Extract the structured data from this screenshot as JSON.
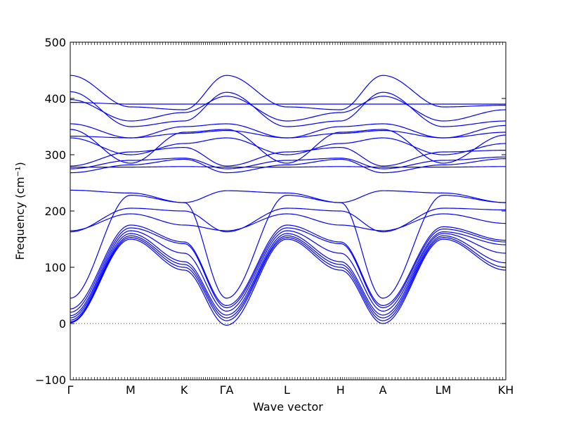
{
  "chart_data": {
    "type": "line",
    "xlabel": "Wave vector",
    "ylabel": "Frequency (cm⁻¹)",
    "ylim": [
      -100,
      500
    ],
    "yticks": [
      -100,
      0,
      100,
      200,
      300,
      400,
      500
    ],
    "yticks_labels": [
      "−100",
      "0",
      "100",
      "200",
      "300",
      "400",
      "500"
    ],
    "xlim": [
      0,
      7.8
    ],
    "kpoints": [
      {
        "label": "Γ",
        "x": 0.0
      },
      {
        "label": "M",
        "x": 1.08
      },
      {
        "label": "K",
        "x": 2.04
      },
      {
        "label": "ΓA",
        "x": 2.8
      },
      {
        "label": "L",
        "x": 3.88
      },
      {
        "label": "H",
        "x": 4.84
      },
      {
        "label": "A",
        "x": 5.6
      },
      {
        "label": "LM",
        "x": 6.68
      },
      {
        "label": "KH",
        "x": 7.8
      }
    ],
    "zero_line": {
      "y": 0,
      "style": "dotted"
    },
    "series_color": "#0000ff",
    "segment_starts": [
      0.0,
      1.08,
      2.04,
      2.8,
      3.88,
      4.84,
      5.6,
      6.68
    ],
    "bands": [
      [
        [
          0,
          1.5
        ],
        [
          1.08,
          150
        ],
        [
          2.04,
          95
        ],
        [
          2.8,
          -3
        ],
        [
          3.88,
          150
        ],
        [
          4.84,
          95
        ],
        [
          5.6,
          0
        ],
        [
          6.68,
          150
        ],
        [
          7.8,
          95
        ]
      ],
      [
        [
          0,
          3
        ],
        [
          1.08,
          153
        ],
        [
          2.04,
          100
        ],
        [
          2.8,
          5
        ],
        [
          3.88,
          153
        ],
        [
          4.84,
          100
        ],
        [
          5.6,
          5
        ],
        [
          6.68,
          153
        ],
        [
          7.8,
          100
        ]
      ],
      [
        [
          0,
          6
        ],
        [
          1.08,
          156
        ],
        [
          2.04,
          105
        ],
        [
          2.8,
          10
        ],
        [
          3.88,
          156
        ],
        [
          4.84,
          105
        ],
        [
          5.6,
          10
        ],
        [
          6.68,
          156
        ],
        [
          7.8,
          108
        ]
      ],
      [
        [
          0,
          10
        ],
        [
          1.08,
          160
        ],
        [
          2.04,
          110
        ],
        [
          2.8,
          15
        ],
        [
          3.88,
          160
        ],
        [
          4.84,
          110
        ],
        [
          5.6,
          15
        ],
        [
          6.68,
          160
        ],
        [
          7.8,
          125
        ]
      ],
      [
        [
          0,
          14
        ],
        [
          1.08,
          165
        ],
        [
          2.04,
          125
        ],
        [
          2.8,
          22
        ],
        [
          3.88,
          165
        ],
        [
          4.84,
          125
        ],
        [
          5.6,
          22
        ],
        [
          6.68,
          163
        ],
        [
          7.8,
          140
        ]
      ],
      [
        [
          0,
          20
        ],
        [
          1.08,
          170
        ],
        [
          2.04,
          142
        ],
        [
          2.8,
          28
        ],
        [
          3.88,
          170
        ],
        [
          4.84,
          142
        ],
        [
          5.6,
          28
        ],
        [
          6.68,
          168
        ],
        [
          7.8,
          145
        ]
      ],
      [
        [
          0,
          26
        ],
        [
          1.08,
          175
        ],
        [
          2.04,
          145
        ],
        [
          2.8,
          32
        ],
        [
          3.88,
          175
        ],
        [
          4.84,
          145
        ],
        [
          5.6,
          32
        ],
        [
          6.68,
          172
        ],
        [
          7.8,
          148
        ]
      ],
      [
        [
          0,
          45
        ],
        [
          1.08,
          228
        ],
        [
          2.04,
          215
        ],
        [
          2.8,
          45
        ],
        [
          3.88,
          228
        ],
        [
          4.84,
          215
        ],
        [
          5.6,
          45
        ],
        [
          6.68,
          228
        ],
        [
          7.8,
          215
        ]
      ],
      [
        [
          0,
          163
        ],
        [
          1.08,
          205
        ],
        [
          2.04,
          200
        ],
        [
          2.8,
          163
        ],
        [
          3.88,
          205
        ],
        [
          4.84,
          200
        ],
        [
          5.6,
          163
        ],
        [
          6.68,
          205
        ],
        [
          7.8,
          202
        ]
      ],
      [
        [
          0,
          165
        ],
        [
          1.08,
          195
        ],
        [
          2.04,
          175
        ],
        [
          2.8,
          165
        ],
        [
          3.88,
          195
        ],
        [
          4.84,
          175
        ],
        [
          5.6,
          165
        ],
        [
          6.68,
          195
        ],
        [
          7.8,
          178
        ]
      ],
      [
        [
          0,
          237
        ],
        [
          1.08,
          232
        ],
        [
          2.04,
          215
        ],
        [
          2.8,
          236
        ],
        [
          3.88,
          232
        ],
        [
          4.84,
          215
        ],
        [
          5.6,
          236
        ],
        [
          6.68,
          232
        ],
        [
          7.8,
          215
        ]
      ],
      [
        [
          0,
          268
        ],
        [
          1.08,
          282
        ],
        [
          2.04,
          292
        ],
        [
          2.8,
          268
        ],
        [
          3.88,
          282
        ],
        [
          4.84,
          292
        ],
        [
          5.6,
          268
        ],
        [
          6.68,
          282
        ],
        [
          7.8,
          293
        ]
      ],
      [
        [
          0,
          275
        ],
        [
          1.08,
          290
        ],
        [
          2.04,
          294
        ],
        [
          2.8,
          275
        ],
        [
          3.88,
          290
        ],
        [
          4.84,
          294
        ],
        [
          5.6,
          275
        ],
        [
          6.68,
          290
        ],
        [
          7.8,
          296
        ]
      ],
      [
        [
          0,
          278
        ],
        [
          1.08,
          278
        ],
        [
          2.04,
          279
        ],
        [
          2.8,
          278
        ],
        [
          3.88,
          278
        ],
        [
          4.84,
          279
        ],
        [
          5.6,
          278
        ],
        [
          6.68,
          278
        ],
        [
          7.8,
          279
        ]
      ],
      [
        [
          0,
          280
        ],
        [
          1.08,
          305
        ],
        [
          2.04,
          313
        ],
        [
          2.8,
          280
        ],
        [
          3.88,
          305
        ],
        [
          4.84,
          313
        ],
        [
          5.6,
          280
        ],
        [
          6.68,
          305
        ],
        [
          7.8,
          308
        ]
      ],
      [
        [
          0,
          330
        ],
        [
          1.08,
          300
        ],
        [
          2.04,
          320
        ],
        [
          2.8,
          330
        ],
        [
          3.88,
          300
        ],
        [
          4.84,
          320
        ],
        [
          5.6,
          330
        ],
        [
          6.68,
          300
        ],
        [
          7.8,
          320
        ]
      ],
      [
        [
          0,
          333
        ],
        [
          1.08,
          330
        ],
        [
          2.04,
          338
        ],
        [
          2.8,
          343
        ],
        [
          3.88,
          330
        ],
        [
          4.84,
          338
        ],
        [
          5.6,
          343
        ],
        [
          6.68,
          330
        ],
        [
          7.8,
          340
        ]
      ],
      [
        [
          0,
          345
        ],
        [
          1.08,
          285
        ],
        [
          2.04,
          340
        ],
        [
          2.8,
          345
        ],
        [
          3.88,
          285
        ],
        [
          4.84,
          340
        ],
        [
          5.6,
          345
        ],
        [
          6.68,
          285
        ],
        [
          7.8,
          335
        ]
      ],
      [
        [
          0,
          355
        ],
        [
          1.08,
          330
        ],
        [
          2.04,
          350
        ],
        [
          2.8,
          355
        ],
        [
          3.88,
          330
        ],
        [
          4.84,
          350
        ],
        [
          5.6,
          355
        ],
        [
          6.68,
          330
        ],
        [
          7.8,
          352
        ]
      ],
      [
        [
          0,
          393
        ],
        [
          1.08,
          390
        ],
        [
          2.04,
          390
        ],
        [
          2.8,
          390
        ],
        [
          3.88,
          390
        ],
        [
          4.84,
          390
        ],
        [
          5.6,
          390
        ],
        [
          6.68,
          390
        ],
        [
          7.8,
          390
        ]
      ],
      [
        [
          0,
          398
        ],
        [
          1.08,
          360
        ],
        [
          2.04,
          375
        ],
        [
          2.8,
          404
        ],
        [
          3.88,
          360
        ],
        [
          4.84,
          375
        ],
        [
          5.6,
          404
        ],
        [
          6.68,
          360
        ],
        [
          7.8,
          380
        ]
      ],
      [
        [
          0,
          412
        ],
        [
          1.08,
          350
        ],
        [
          2.04,
          360
        ],
        [
          2.8,
          411
        ],
        [
          3.88,
          350
        ],
        [
          4.84,
          360
        ],
        [
          5.6,
          411
        ],
        [
          6.68,
          350
        ],
        [
          7.8,
          360
        ]
      ],
      [
        [
          0,
          441
        ],
        [
          1.08,
          385
        ],
        [
          2.04,
          380
        ],
        [
          2.8,
          441
        ],
        [
          3.88,
          385
        ],
        [
          4.84,
          380
        ],
        [
          5.6,
          441
        ],
        [
          6.68,
          385
        ],
        [
          7.8,
          388
        ]
      ]
    ]
  }
}
